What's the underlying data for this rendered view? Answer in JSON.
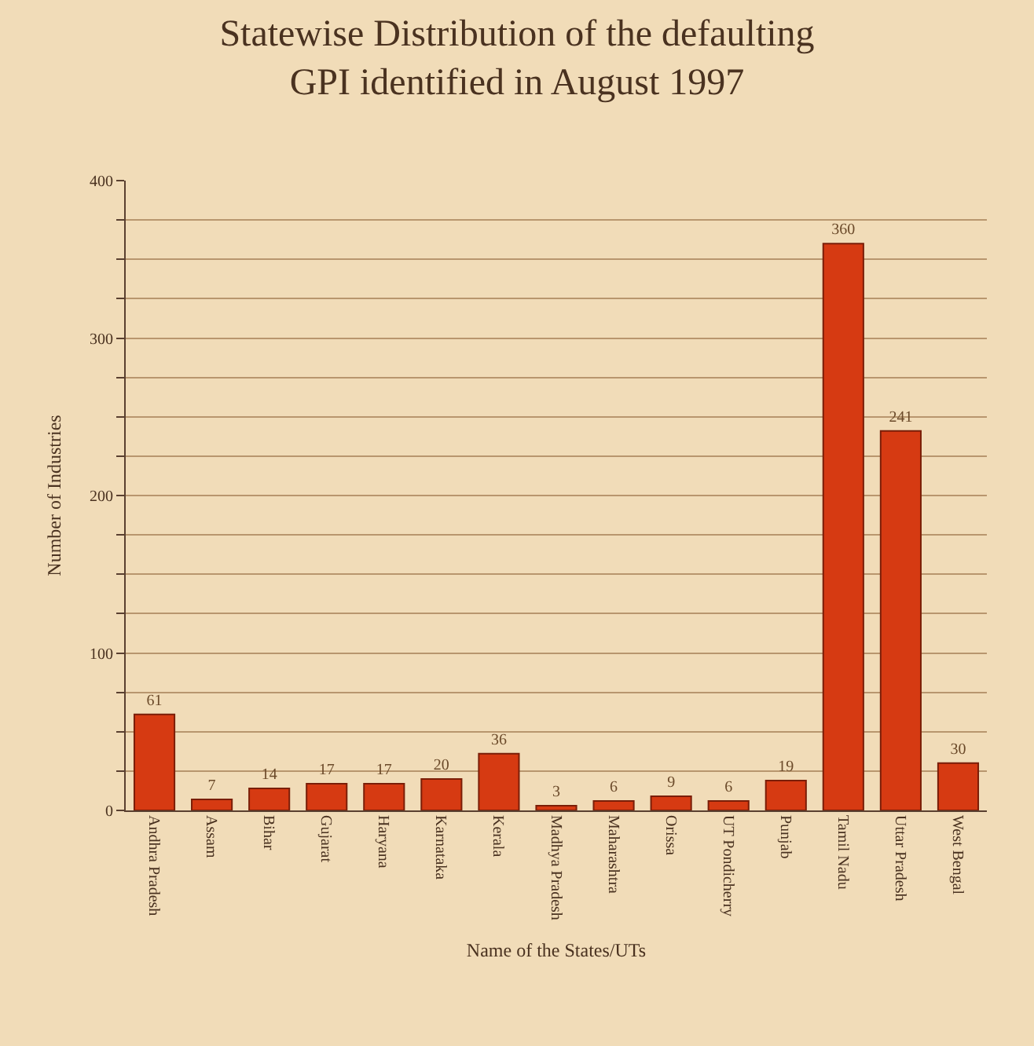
{
  "chart_data": {
    "type": "bar",
    "title": "Statewise Distribution of the defaulting\nGPI identified in August 1997",
    "xlabel": "Name of the States/UTs",
    "ylabel": "Number of Industries",
    "categories": [
      "Andhra Pradesh",
      "Assam",
      "Bihar",
      "Gujarat",
      "Haryana",
      "Karnataka",
      "Kerala",
      "Madhya Pradesh",
      "Maharashtra",
      "Orissa",
      "UT Pondicherry",
      "Punjab",
      "Tamil Nadu",
      "Uttar Pradesh",
      "West Bengal"
    ],
    "values": [
      61,
      7,
      14,
      17,
      17,
      20,
      36,
      3,
      6,
      9,
      6,
      19,
      360,
      241,
      30
    ],
    "color": "#d63a12",
    "ylim": [
      0,
      400
    ],
    "yticks": [
      0,
      {
        "value": 25,
        "label": null
      },
      {
        "value": 50,
        "label": null
      },
      {
        "value": 75,
        "label": null
      },
      100,
      {
        "value": 125,
        "label": null
      },
      {
        "value": 150,
        "label": null
      },
      {
        "value": 175,
        "label": null
      },
      200,
      {
        "value": 225,
        "label": null
      },
      {
        "value": 250,
        "label": null
      },
      {
        "value": 275,
        "label": null
      },
      300,
      {
        "value": 325,
        "label": null
      },
      {
        "value": 350,
        "label": null
      },
      {
        "value": 375,
        "label": null
      },
      400
    ],
    "grid": "y",
    "data_labels": true,
    "legend": false
  }
}
